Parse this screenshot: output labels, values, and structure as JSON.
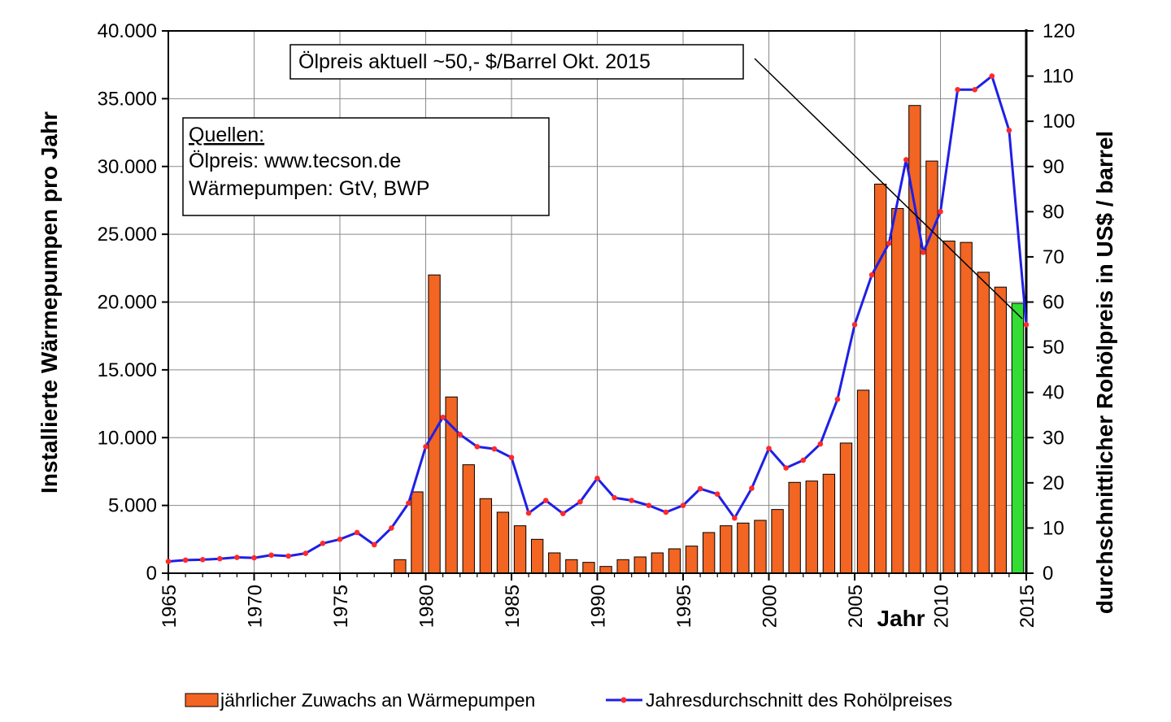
{
  "chart_data": {
    "type": "bar+line",
    "ylabel": "Installierte Wärmepumpen pro Jahr",
    "y2label": "durchschnittlicher Rohölpreis in US$ / barrel",
    "xlabel": "Jahr",
    "xlim": [
      1965,
      2015
    ],
    "ylim": [
      0,
      40000
    ],
    "y2lim": [
      0,
      120
    ],
    "grid": true,
    "y_ticks": [
      "0",
      "5.000",
      "10.000",
      "15.000",
      "20.000",
      "25.000",
      "30.000",
      "35.000",
      "40.000"
    ],
    "y2_ticks": [
      "0",
      "10",
      "20",
      "30",
      "40",
      "50",
      "60",
      "70",
      "80",
      "90",
      "100",
      "110",
      "120"
    ],
    "x_ticks": [
      "1965",
      "1970",
      "1975",
      "1980",
      "1985",
      "1990",
      "1995",
      "2000",
      "2005",
      "2010",
      "2015"
    ],
    "bars": {
      "name": "jährlicher Zuwachs an Wärmepumpen",
      "color": "#f26522",
      "highlight_color": "#33dd33",
      "highlight_year": 2014,
      "x": [
        1978,
        1979,
        1980,
        1981,
        1982,
        1983,
        1984,
        1985,
        1986,
        1987,
        1988,
        1989,
        1990,
        1991,
        1992,
        1993,
        1994,
        1995,
        1996,
        1997,
        1998,
        1999,
        2000,
        2001,
        2002,
        2003,
        2004,
        2005,
        2006,
        2007,
        2008,
        2009,
        2010,
        2011,
        2012,
        2013,
        2014
      ],
      "values": [
        1000,
        6000,
        22000,
        13000,
        8000,
        5500,
        4500,
        3500,
        2500,
        1500,
        1000,
        800,
        500,
        1000,
        1200,
        1500,
        1800,
        2000,
        3000,
        3500,
        3700,
        3900,
        4700,
        6700,
        6800,
        7300,
        9600,
        13500,
        28700,
        26900,
        34500,
        30400,
        24500,
        24400,
        22200,
        21100,
        19900
      ]
    },
    "line": {
      "name": "Jahresdurchschnitt des Rohölpreises",
      "color": "#1f1fe6",
      "marker_color": "#ff2a2a",
      "x": [
        1965,
        1966,
        1967,
        1968,
        1969,
        1970,
        1971,
        1972,
        1973,
        1974,
        1975,
        1976,
        1977,
        1978,
        1979,
        1980,
        1981,
        1982,
        1983,
        1984,
        1985,
        1986,
        1987,
        1988,
        1989,
        1990,
        1991,
        1992,
        1993,
        1994,
        1995,
        1996,
        1997,
        1998,
        1999,
        2000,
        2001,
        2002,
        2003,
        2004,
        2005,
        2006,
        2007,
        2008,
        2009,
        2010,
        2011,
        2012,
        2013,
        2014,
        2015
      ],
      "values": [
        2.6,
        2.9,
        3.0,
        3.2,
        3.5,
        3.4,
        4.0,
        3.8,
        4.4,
        6.6,
        7.5,
        9.0,
        6.3,
        10.0,
        15.5,
        28.0,
        34.5,
        30.7,
        28.0,
        27.5,
        25.6,
        13.3,
        16.1,
        13.2,
        15.8,
        21.0,
        16.7,
        16.1,
        15.0,
        13.5,
        15.0,
        18.7,
        17.5,
        12.2,
        18.8,
        27.6,
        23.3,
        25.0,
        28.6,
        38.5,
        55.0,
        66.0,
        73.0,
        91.5,
        71.0,
        80.0,
        107.0,
        107.0,
        110.0,
        98.0,
        55.0
      ]
    },
    "annotation": {
      "text": "Ölpreis aktuell ~50,- $/Barrel Okt. 2015"
    },
    "sources": {
      "heading": "Quellen:",
      "line1": "Ölpreis: www.tecson.de",
      "line2": "Wärmepumpen: GtV, BWP"
    }
  }
}
